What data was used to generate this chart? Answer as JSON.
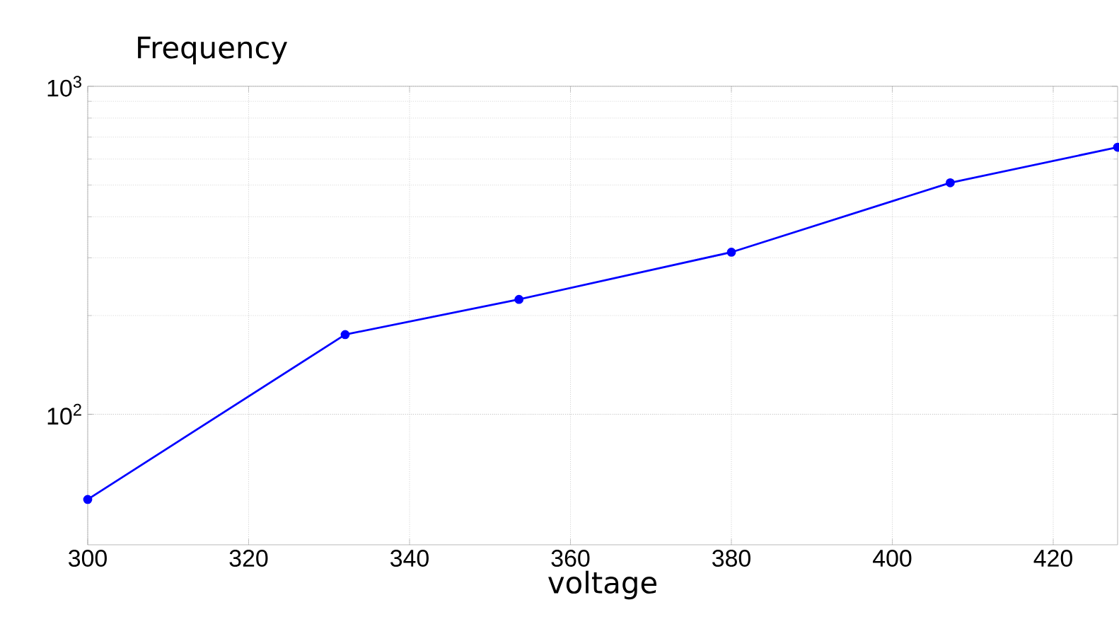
{
  "chart_data": {
    "type": "line",
    "xlabel": "voltage",
    "ylabel": "Frequency",
    "x": [
      300,
      332,
      353.6,
      380,
      407.2,
      428
    ],
    "series": [
      {
        "color": "#0000ff",
        "values": [
          55,
          175,
          224,
          312,
          508,
          652
        ]
      }
    ],
    "xlim": [
      300,
      428
    ],
    "ylim": [
      40,
      1000
    ],
    "log": "y",
    "xticks": [
      300,
      320,
      340,
      360,
      380,
      400,
      420
    ],
    "yticks": [
      {
        "value": 100,
        "label": "10$^{2}$"
      },
      {
        "value": 1000,
        "label": "10$^{3}$"
      }
    ],
    "grid": true,
    "marker": "circle",
    "line_style": "solid"
  }
}
